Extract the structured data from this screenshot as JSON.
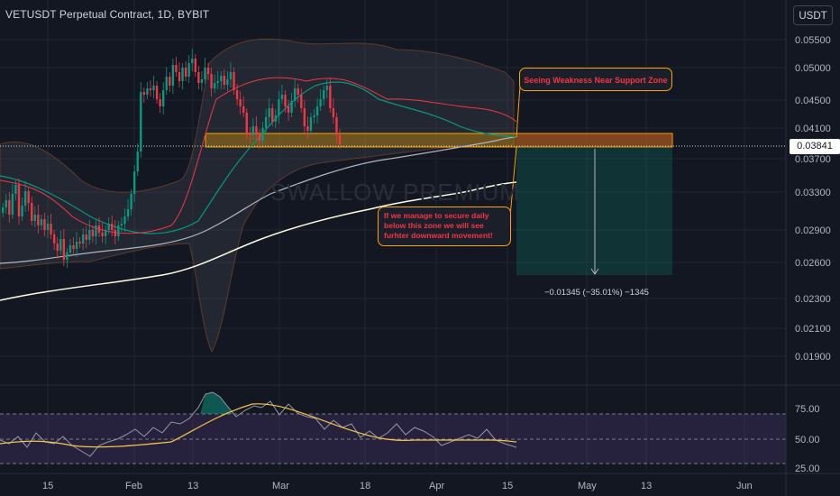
{
  "header": {
    "title": "VETUSDT Perpetual Contract, 1D, BYBIT",
    "currency_button": "USDT"
  },
  "watermark": "SWALLOW PREMIUM",
  "price_axis": {
    "ticks": [
      "0.05500",
      "0.05000",
      "0.04500",
      "0.04100",
      "0.03700",
      "0.03300",
      "0.02900",
      "0.02600",
      "0.02300",
      "0.02100",
      "0.01900"
    ],
    "current_price": "0.03841"
  },
  "rsi_axis": {
    "ticks": [
      "75.00",
      "50.00",
      "25.00"
    ]
  },
  "time_axis": {
    "ticks": [
      "15",
      "Feb",
      "13",
      "Mar",
      "18",
      "Apr",
      "15",
      "May",
      "13",
      "Jun"
    ]
  },
  "annotations": {
    "callout_top": "Seeing Weakness Near Support Zone",
    "callout_bottom": "If we manage to secure daily below this zone we will see furhter downward movement!",
    "measure_label": "−0.01345 (−35.01%) −1345"
  },
  "colors": {
    "background": "#131722",
    "bullish": "#089981",
    "bearish": "#f23645",
    "zone": "#f7a600",
    "rsi_line": "#9598a1",
    "rsi_ma": "#f7c54a"
  }
}
